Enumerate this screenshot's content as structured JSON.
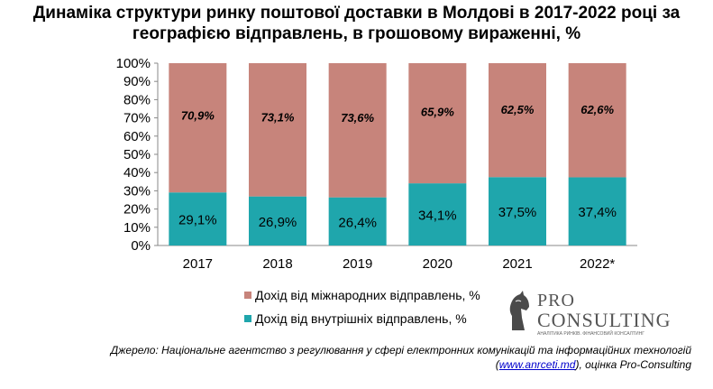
{
  "title_line1": "Динаміка структури ринку поштової доставки в Молдові в 2017-2022 році за",
  "title_line2": "географією відправлень, в грошовому вираженні, %",
  "chart_data": {
    "type": "bar",
    "stacked": true,
    "categories": [
      "2017",
      "2018",
      "2019",
      "2020",
      "2021",
      "2022*"
    ],
    "series": [
      {
        "name": "Дохід від внутрішніх  відправлень, %",
        "values": [
          29.1,
          26.9,
          26.4,
          34.1,
          37.5,
          37.4
        ],
        "labels": [
          "29,1%",
          "26,9%",
          "26,4%",
          "34,1%",
          "37,5%",
          "37,4%"
        ],
        "color": "#1fa6ac"
      },
      {
        "name": "Дохід від міжнародних  відправлень, %",
        "values": [
          70.9,
          73.1,
          73.6,
          65.9,
          62.5,
          62.6
        ],
        "labels": [
          "70,9%",
          "73,1%",
          "73,6%",
          "65,9%",
          "62,5%",
          "62,6%"
        ],
        "color": "#c7847b"
      }
    ],
    "yticks": [
      "0%",
      "10%",
      "20%",
      "30%",
      "40%",
      "50%",
      "60%",
      "70%",
      "80%",
      "90%",
      "100%"
    ],
    "ylim": [
      0,
      100
    ],
    "grid": false,
    "legend_position": "bottom"
  },
  "logo": {
    "pro": "PRO",
    "consulting": "CONSULTING",
    "tagline": "АНАЛІТИКА РИНКІВ. ФІНАНСОВИЙ КОНСАЛТИНГ"
  },
  "source": {
    "line1": "Джерело: Національне агентство з регулювання у сфері електронних комунікацій та інформаційних технологій",
    "link": "www.anrceti.md",
    "after_link": ", оцінка Pro-Consulting"
  }
}
